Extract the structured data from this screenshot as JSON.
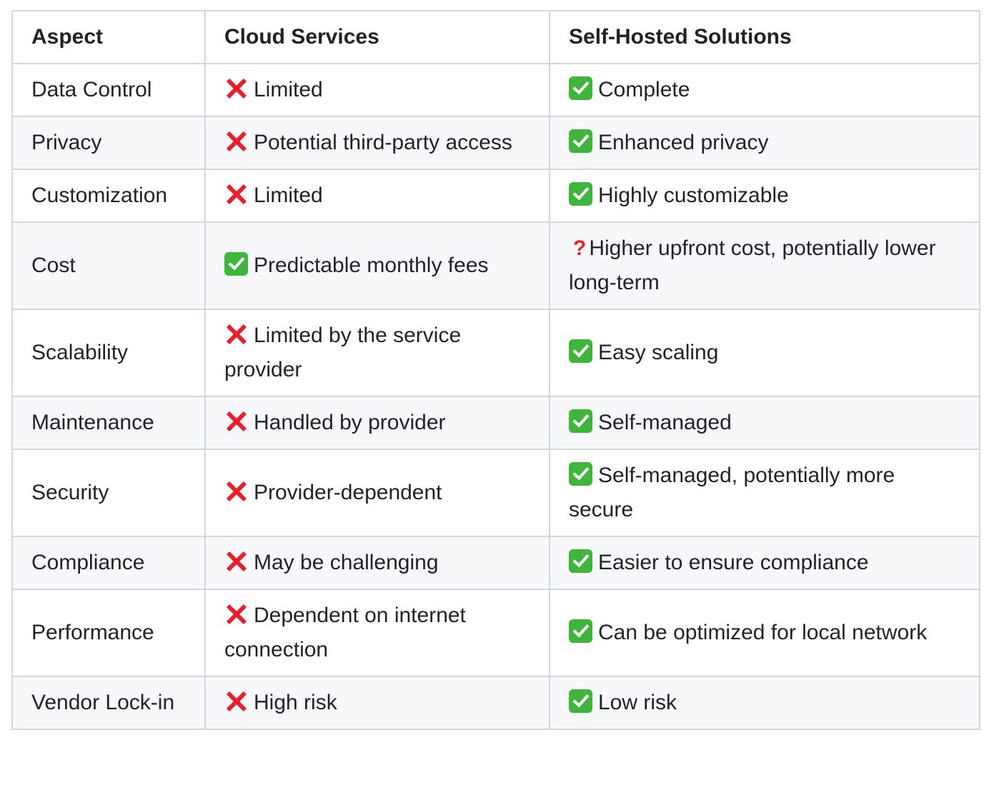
{
  "table": {
    "headers": [
      "Aspect",
      "Cloud Services",
      "Self-Hosted Solutions"
    ],
    "rows": [
      {
        "aspect": "Data Control",
        "cloud": {
          "icon": "cross-mark-icon",
          "text": "Limited"
        },
        "self": {
          "icon": "check-mark-icon",
          "text": "Complete"
        }
      },
      {
        "aspect": "Privacy",
        "cloud": {
          "icon": "cross-mark-icon",
          "text": "Potential third-party access"
        },
        "self": {
          "icon": "check-mark-icon",
          "text": "Enhanced privacy"
        }
      },
      {
        "aspect": "Customization",
        "cloud": {
          "icon": "cross-mark-icon",
          "text": "Limited"
        },
        "self": {
          "icon": "check-mark-icon",
          "text": "Highly customizable"
        }
      },
      {
        "aspect": "Cost",
        "cloud": {
          "icon": "check-mark-icon",
          "text": "Predictable monthly fees"
        },
        "self": {
          "icon": "question-mark-icon",
          "glyph": "?",
          "text": "Higher upfront cost, potentially lower long-term"
        }
      },
      {
        "aspect": "Scalability",
        "cloud": {
          "icon": "cross-mark-icon",
          "text": "Limited by the service provider"
        },
        "self": {
          "icon": "check-mark-icon",
          "text": "Easy scaling"
        }
      },
      {
        "aspect": "Maintenance",
        "cloud": {
          "icon": "cross-mark-icon",
          "text": "Handled by provider"
        },
        "self": {
          "icon": "check-mark-icon",
          "text": "Self-managed"
        }
      },
      {
        "aspect": "Security",
        "cloud": {
          "icon": "cross-mark-icon",
          "text": "Provider-dependent"
        },
        "self": {
          "icon": "check-mark-icon",
          "text": "Self-managed, potentially more secure"
        }
      },
      {
        "aspect": "Compliance",
        "cloud": {
          "icon": "cross-mark-icon",
          "text": "May be challenging"
        },
        "self": {
          "icon": "check-mark-icon",
          "text": "Easier to ensure compliance"
        }
      },
      {
        "aspect": "Performance",
        "cloud": {
          "icon": "cross-mark-icon",
          "text": "Dependent on internet connection"
        },
        "self": {
          "icon": "check-mark-icon",
          "text": "Can be optimized for local network"
        }
      },
      {
        "aspect": "Vendor Lock-in",
        "cloud": {
          "icon": "cross-mark-icon",
          "text": "High risk"
        },
        "self": {
          "icon": "check-mark-icon",
          "text": "Low risk"
        }
      }
    ]
  },
  "colors": {
    "border": "#d0d7de",
    "alt_row_bg": "#f6f8fa",
    "text": "#1f2328",
    "check_green": "#3fb53b",
    "cross_red": "#e8202b"
  }
}
